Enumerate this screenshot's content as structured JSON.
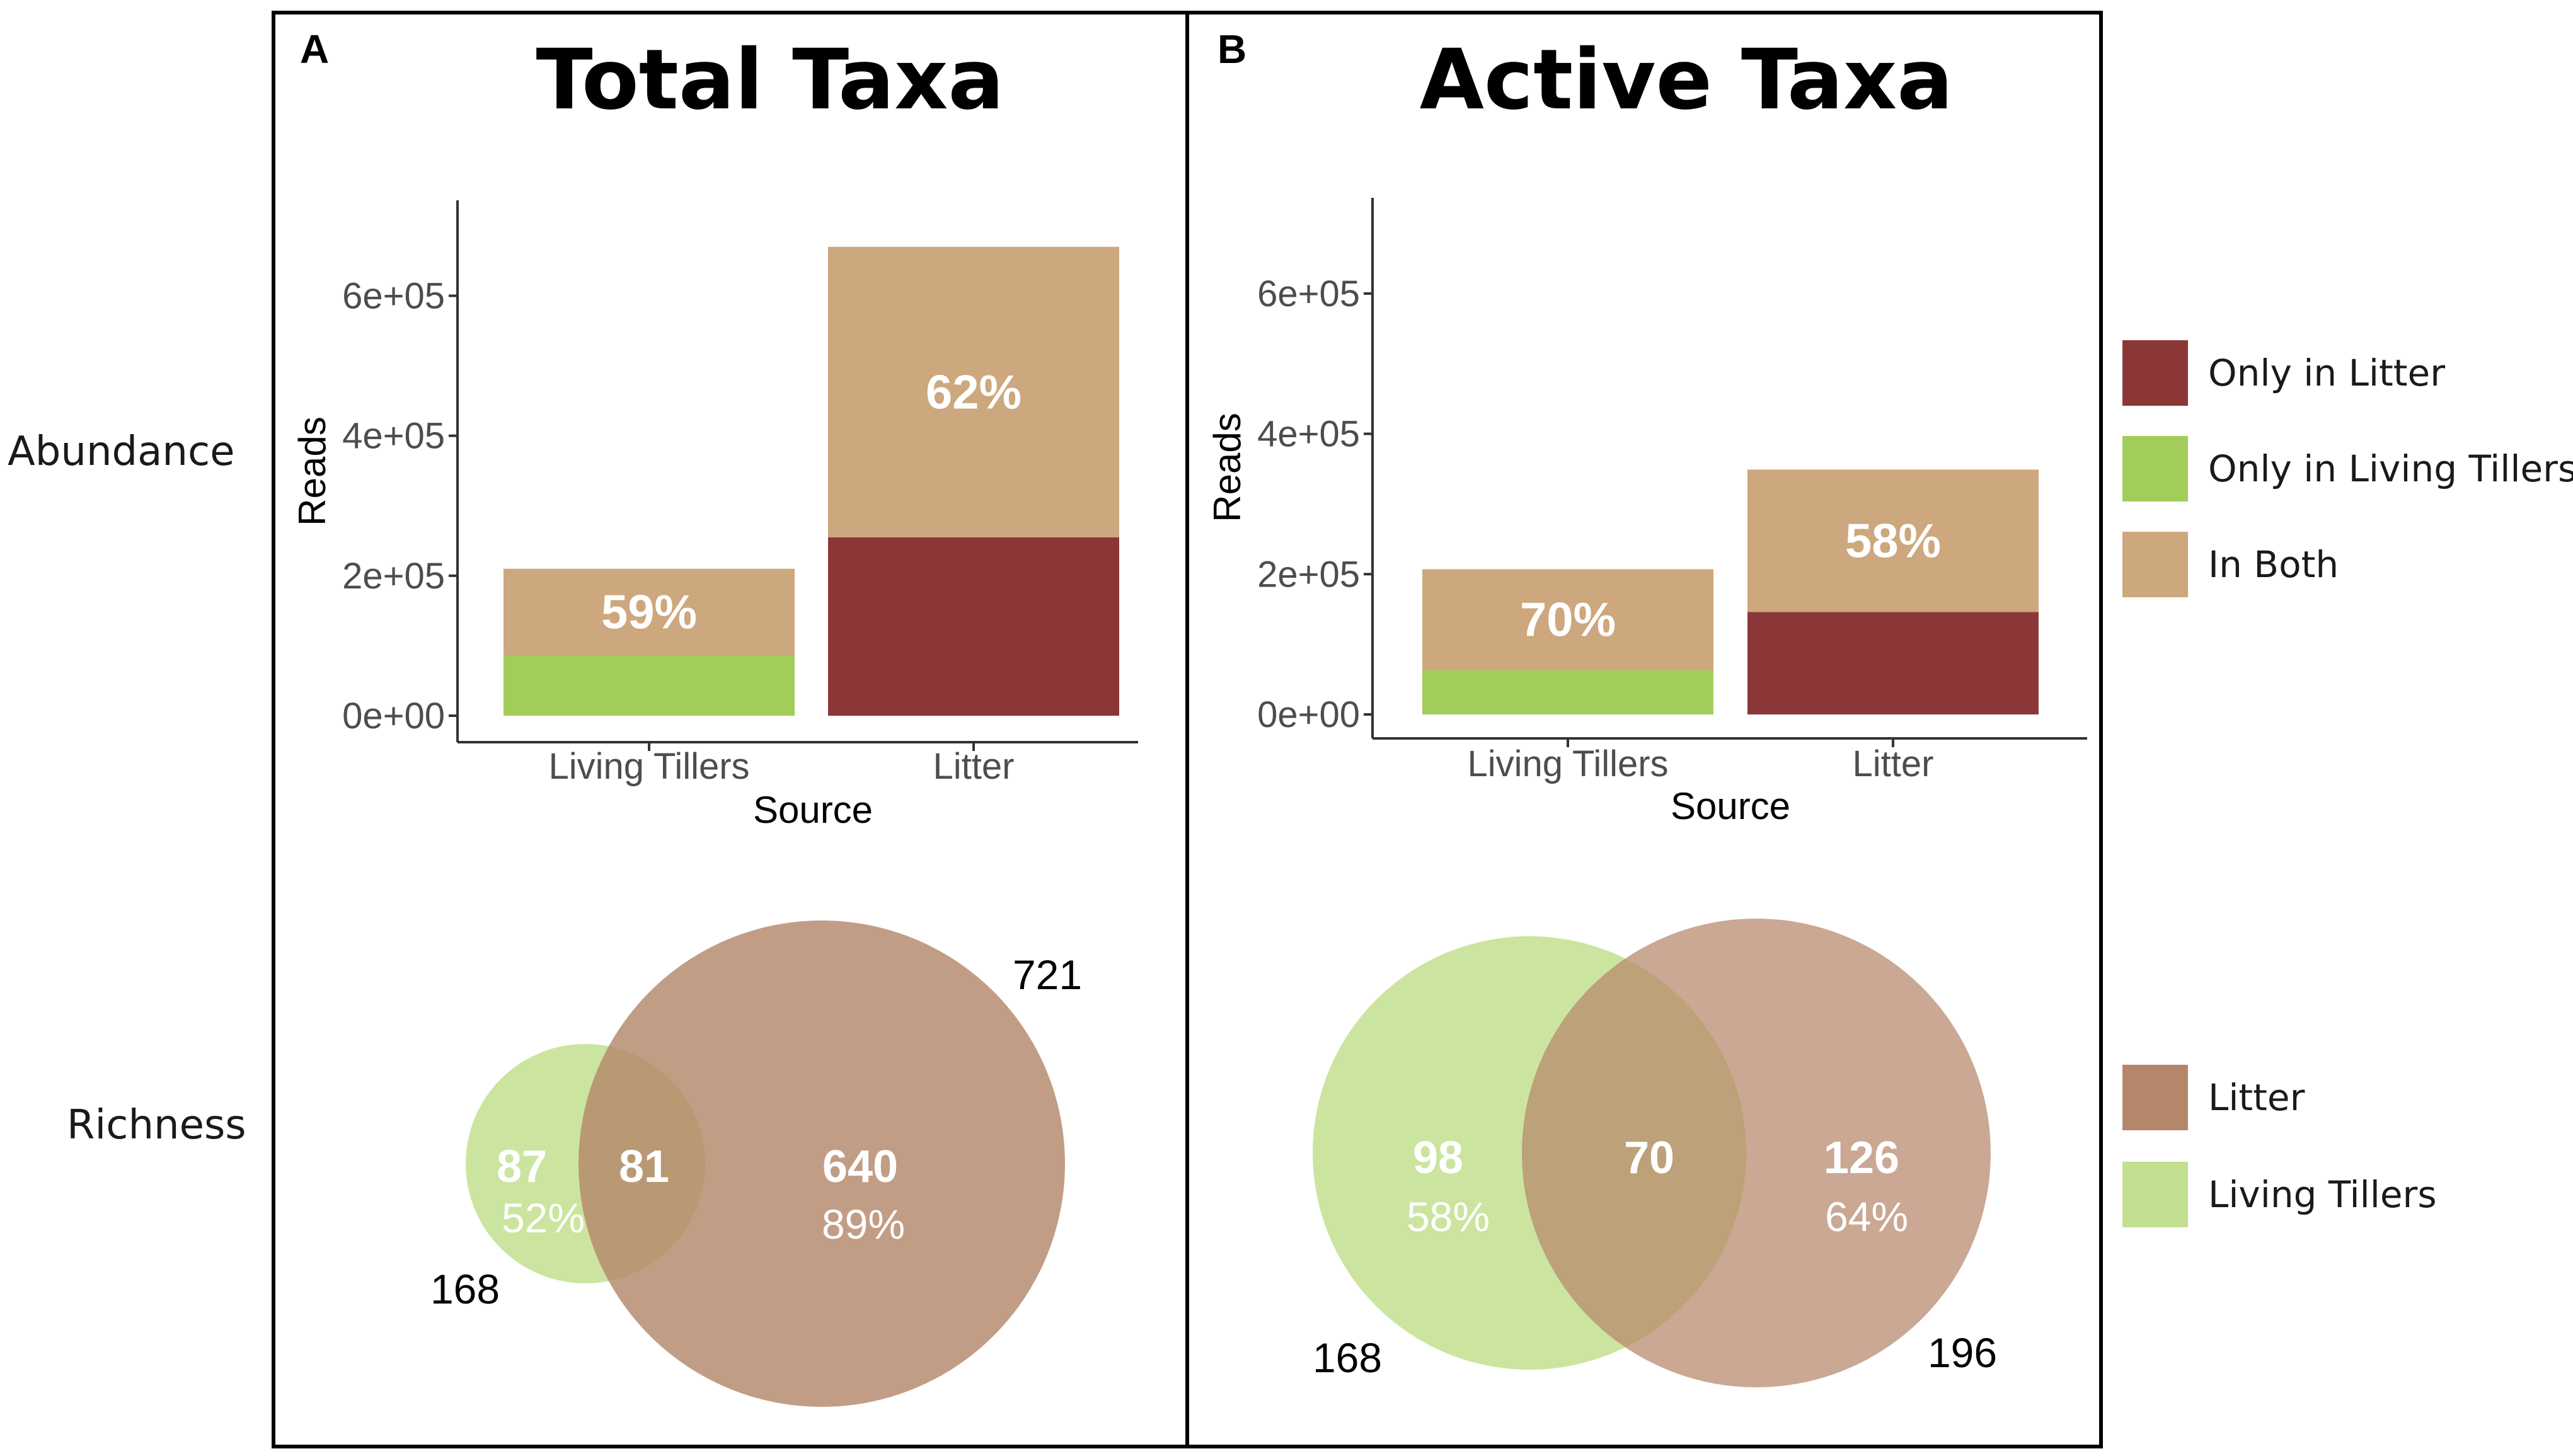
{
  "row_labels": {
    "abundance": "Abundance",
    "richness": "Richness"
  },
  "colors": {
    "only_litter": "#8b3737",
    "only_living_tillers": "#a2cd5a",
    "in_both": "#cda77d",
    "venn_litter": "#b5876a",
    "venn_living_tillers": "#c2e08f",
    "panel_border": "#000000"
  },
  "abundance_legend": [
    {
      "label": "Only in Litter",
      "color_key": "only_litter"
    },
    {
      "label": "Only in Living Tillers",
      "color_key": "only_living_tillers"
    },
    {
      "label": "In Both",
      "color_key": "in_both"
    }
  ],
  "richness_legend": [
    {
      "label": "Litter",
      "color_key": "venn_litter"
    },
    {
      "label": "Living Tillers",
      "color_key": "venn_living_tillers"
    }
  ],
  "chart_data": [
    {
      "type": "bar",
      "panel_letter": "A",
      "title": "Total Taxa",
      "xlabel": "Source",
      "ylabel": "Reads",
      "ylim": [
        0,
        740000
      ],
      "yticks": [
        0,
        200000,
        400000,
        600000
      ],
      "ytick_labels": [
        "0e+00",
        "2e+05",
        "4e+05",
        "6e+05"
      ],
      "categories": [
        "Living Tillers",
        "Litter"
      ],
      "series": [
        {
          "name": "Only in Litter",
          "color_key": "only_litter",
          "values": [
            0,
            255000
          ]
        },
        {
          "name": "Only in Living Tillers",
          "color_key": "only_living_tillers",
          "values": [
            86000,
            0
          ]
        },
        {
          "name": "In Both",
          "color_key": "in_both",
          "values": [
            124000,
            415000
          ]
        }
      ],
      "bar_labels": [
        "59%",
        "62%"
      ]
    },
    {
      "type": "bar",
      "panel_letter": "B",
      "title": "Active Taxa",
      "xlabel": "Source",
      "ylabel": "Reads",
      "ylim": [
        0,
        740000
      ],
      "yticks": [
        0,
        200000,
        400000,
        600000
      ],
      "ytick_labels": [
        "0e+00",
        "2e+05",
        "4e+05",
        "6e+05"
      ],
      "categories": [
        "Living Tillers",
        "Litter"
      ],
      "series": [
        {
          "name": "Only in Litter",
          "color_key": "only_litter",
          "values": [
            0,
            146000
          ]
        },
        {
          "name": "Only in Living Tillers",
          "color_key": "only_living_tillers",
          "values": [
            63000,
            0
          ]
        },
        {
          "name": "In Both",
          "color_key": "in_both",
          "values": [
            144000,
            203000
          ]
        }
      ],
      "bar_labels": [
        "70%",
        "58%"
      ]
    },
    {
      "type": "venn",
      "panel": "A",
      "sets": [
        {
          "name": "Living Tillers",
          "total": "168",
          "color_key": "venn_living_tillers"
        },
        {
          "name": "Litter",
          "total": "721",
          "color_key": "venn_litter"
        }
      ],
      "regions": {
        "only_living_tillers": {
          "count": "87",
          "percent": "52%"
        },
        "both": {
          "count": "81"
        },
        "only_litter": {
          "count": "640",
          "percent": "89%"
        }
      }
    },
    {
      "type": "venn",
      "panel": "B",
      "sets": [
        {
          "name": "Living Tillers",
          "total": "168",
          "color_key": "venn_living_tillers"
        },
        {
          "name": "Litter",
          "total": "196",
          "color_key": "venn_litter"
        }
      ],
      "regions": {
        "only_living_tillers": {
          "count": "98",
          "percent": "58%"
        },
        "both": {
          "count": "70"
        },
        "only_litter": {
          "count": "126",
          "percent": "64%"
        }
      }
    }
  ]
}
